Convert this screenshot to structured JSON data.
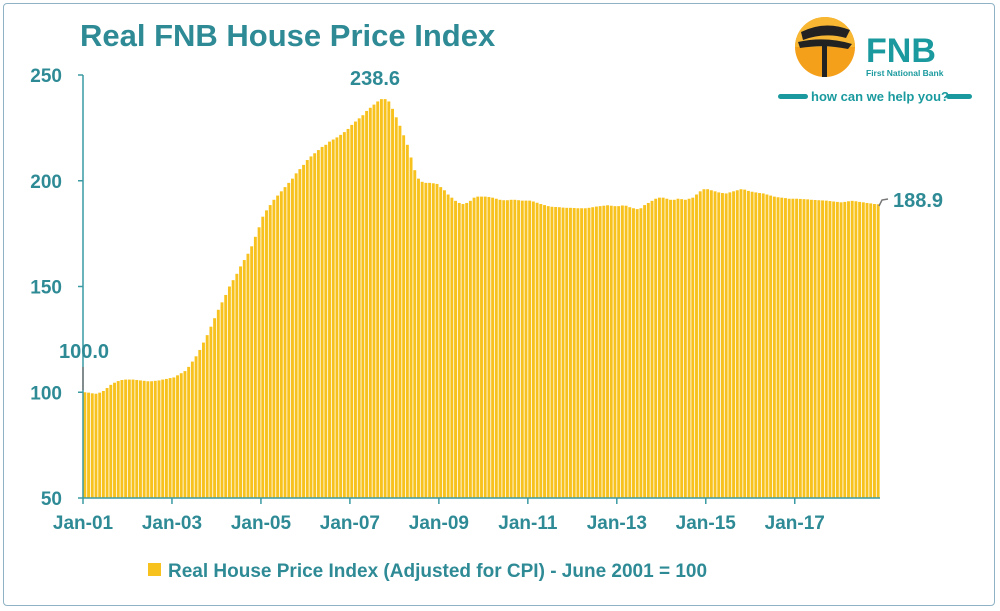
{
  "logo": {
    "name": "FNB",
    "subtitle": "First National Bank",
    "tagline": "how can we help you?"
  },
  "colors": {
    "bar": "#F8C21E",
    "axis": "#3A9AA3",
    "text": "#2E8B96",
    "logo_orange": "#F5A01A"
  },
  "chart_data": {
    "type": "bar",
    "title": "Real FNB House Price Index",
    "xlabel": "",
    "ylabel": "",
    "ylim": [
      50,
      250
    ],
    "yticks": [
      "50",
      "100",
      "150",
      "200",
      "250"
    ],
    "xticks": [
      "Jan-01",
      "Jan-03",
      "Jan-05",
      "Jan-07",
      "Jan-09",
      "Jan-11",
      "Jan-13",
      "Jan-15",
      "Jan-17"
    ],
    "x_start": "Jan-01",
    "x_frequency": "monthly",
    "legend": {
      "label": "Real House Price Index (Adjusted for CPI) - June 2001 = 100",
      "position": "bottom"
    },
    "annotations": {
      "start": "100.0",
      "peak": "238.6",
      "last": "188.9"
    },
    "values": [
      100.0,
      99.8,
      99.5,
      99.3,
      99.8,
      100.6,
      102,
      103.5,
      104.5,
      105.3,
      105.8,
      106,
      106,
      106,
      105.8,
      105.6,
      105.4,
      105.2,
      105.2,
      105.4,
      105.6,
      106,
      106.3,
      106.7,
      107,
      108,
      109,
      110,
      112,
      114.5,
      117,
      120,
      123.5,
      127,
      131,
      135,
      139,
      142.5,
      146,
      150,
      153,
      156,
      159.5,
      162.5,
      165.5,
      169,
      173.5,
      178,
      183,
      186,
      188.5,
      191,
      193,
      195,
      197,
      199,
      201,
      203.5,
      205.5,
      207.5,
      209.8,
      211.5,
      213,
      214.5,
      216,
      217,
      218.5,
      219.5,
      220.5,
      221.7,
      223,
      224.5,
      226.4,
      228,
      229.5,
      231,
      233,
      234.5,
      236,
      237.5,
      238.6,
      238.6,
      237.5,
      234,
      230,
      226,
      221.5,
      217,
      211,
      205,
      201,
      199.5,
      199,
      199,
      198.8,
      198.5,
      197,
      195.5,
      193.5,
      192,
      190.5,
      189.5,
      189,
      189.5,
      190.5,
      192,
      192.5,
      192.5,
      192.5,
      192.3,
      192,
      191.5,
      191,
      190.8,
      190.8,
      191,
      191,
      190.8,
      190.6,
      190.6,
      190.6,
      190.2,
      189.6,
      189,
      188.5,
      188,
      187.7,
      187.6,
      187.5,
      187.3,
      187.2,
      187.2,
      187.1,
      187,
      187,
      187,
      187.2,
      187.5,
      187.8,
      188,
      188.2,
      188.4,
      188.2,
      188,
      188,
      188.3,
      188.2,
      187.5,
      187,
      186.6,
      187,
      188.5,
      189.5,
      190.5,
      191.5,
      192,
      192,
      191.5,
      191,
      191,
      191.5,
      191.3,
      191,
      191.5,
      192,
      193.5,
      195,
      196,
      196,
      195.5,
      195,
      194.5,
      194.2,
      194,
      194.5,
      195,
      195.5,
      196,
      195.8,
      195.2,
      194.8,
      194.5,
      194.2,
      194,
      193.5,
      193,
      192.5,
      192.2,
      192,
      191.8,
      191.5,
      191.5,
      191.5,
      191.4,
      191.3,
      191.2,
      191,
      190.9,
      190.8,
      190.7,
      190.6,
      190.4,
      190.2,
      190,
      189.8,
      190,
      190.3,
      190.5,
      190.3,
      190,
      189.8,
      189.5,
      189.3,
      189,
      188.9
    ]
  }
}
